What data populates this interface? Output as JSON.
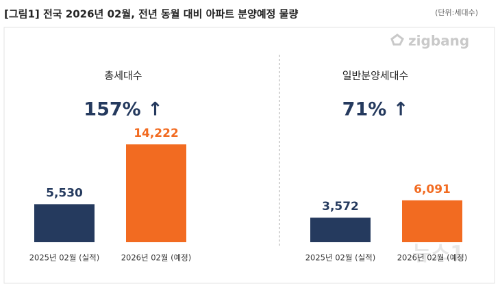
{
  "header": {
    "title": "[그림1] 전국 2026년 02월, 전년 동월 대비 아파트 분양예정 물량",
    "unit": "(단위:세대수)",
    "brand": "zigbang",
    "watermark": "뉴스1"
  },
  "chart_data": [
    {
      "type": "bar",
      "title": "총세대수",
      "annotation": "157% ↑",
      "categories": [
        "2025년 02월 (실적)",
        "2026년 02월 (예정)"
      ],
      "values": [
        5530,
        14222
      ],
      "value_labels": [
        "5,530",
        "14,222"
      ],
      "colors": [
        "#253a5e",
        "#f26b21"
      ]
    },
    {
      "type": "bar",
      "title": "일반분양세대수",
      "annotation": "71% ↑",
      "categories": [
        "2025년 02월 (실적)",
        "2026년 02월 (예정)"
      ],
      "values": [
        3572,
        6091
      ],
      "value_labels": [
        "3,572",
        "6,091"
      ],
      "colors": [
        "#253a5e",
        "#f26b21"
      ]
    }
  ]
}
